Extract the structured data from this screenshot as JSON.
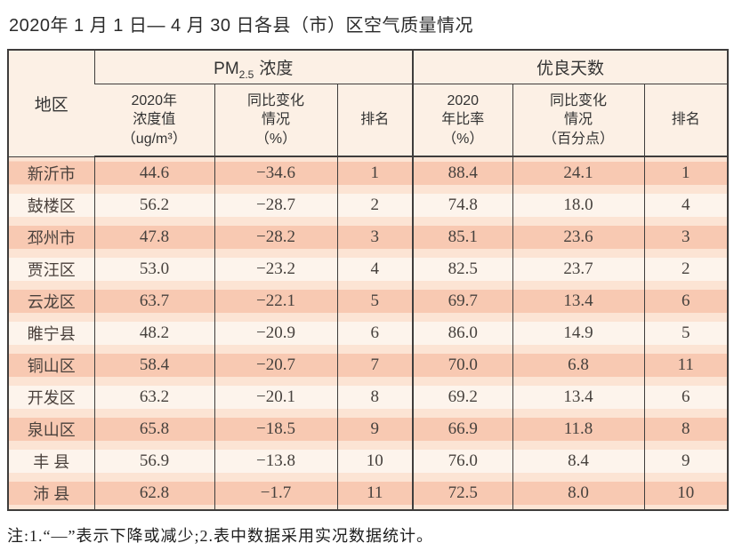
{
  "title": "2020年 1 月 1 日— 4 月 30 日各县（市）区空气质量情况",
  "colors": {
    "border": "#3f3d3c",
    "header_bg": "#fcf0e5",
    "row_gap": "#fce4d4",
    "row_band_odd": "#f8c9b2",
    "row_band_even": "#fdf4ec"
  },
  "table": {
    "corner_header": "地区",
    "group_pm": {
      "prefix": "PM",
      "sub": "2.5",
      "suffix": "浓度"
    },
    "group_good": "优良天数",
    "subheaders": {
      "pm_value": "2020年\n浓度值\n（ug/m³）",
      "pm_change": "同比变化\n情况\n（%）",
      "pm_rank": "排名",
      "good_ratio": "2020\n年比率\n（%）",
      "good_change": "同比变化\n情况\n（百分点）",
      "good_rank": "排名"
    },
    "rows": [
      {
        "region": "新沂市",
        "pm_value": "44.6",
        "pm_change": "−34.6",
        "pm_rank": "1",
        "good_ratio": "88.4",
        "good_change": "24.1",
        "good_rank": "1"
      },
      {
        "region": "鼓楼区",
        "pm_value": "56.2",
        "pm_change": "−28.7",
        "pm_rank": "2",
        "good_ratio": "74.8",
        "good_change": "18.0",
        "good_rank": "4"
      },
      {
        "region": "邳州市",
        "pm_value": "47.8",
        "pm_change": "−28.2",
        "pm_rank": "3",
        "good_ratio": "85.1",
        "good_change": "23.6",
        "good_rank": "3"
      },
      {
        "region": "贾汪区",
        "pm_value": "53.0",
        "pm_change": "−23.2",
        "pm_rank": "4",
        "good_ratio": "82.5",
        "good_change": "23.7",
        "good_rank": "2"
      },
      {
        "region": "云龙区",
        "pm_value": "63.7",
        "pm_change": "−22.1",
        "pm_rank": "5",
        "good_ratio": "69.7",
        "good_change": "13.4",
        "good_rank": "6"
      },
      {
        "region": "睢宁县",
        "pm_value": "48.2",
        "pm_change": "−20.9",
        "pm_rank": "6",
        "good_ratio": "86.0",
        "good_change": "14.9",
        "good_rank": "5"
      },
      {
        "region": "铜山区",
        "pm_value": "58.4",
        "pm_change": "−20.7",
        "pm_rank": "7",
        "good_ratio": "70.0",
        "good_change": "6.8",
        "good_rank": "11"
      },
      {
        "region": "开发区",
        "pm_value": "63.2",
        "pm_change": "−20.1",
        "pm_rank": "8",
        "good_ratio": "69.2",
        "good_change": "13.4",
        "good_rank": "6"
      },
      {
        "region": "泉山区",
        "pm_value": "65.8",
        "pm_change": "−18.5",
        "pm_rank": "9",
        "good_ratio": "66.9",
        "good_change": "11.8",
        "good_rank": "8"
      },
      {
        "region": "丰 县",
        "pm_value": "56.9",
        "pm_change": "−13.8",
        "pm_rank": "10",
        "good_ratio": "76.0",
        "good_change": "8.4",
        "good_rank": "9"
      },
      {
        "region": "沛 县",
        "pm_value": "62.8",
        "pm_change": "−1.7",
        "pm_rank": "11",
        "good_ratio": "72.5",
        "good_change": "8.0",
        "good_rank": "10"
      }
    ]
  },
  "note": "注:1.“—”表示下降或减少;2.表中数据采用实况数据统计。"
}
